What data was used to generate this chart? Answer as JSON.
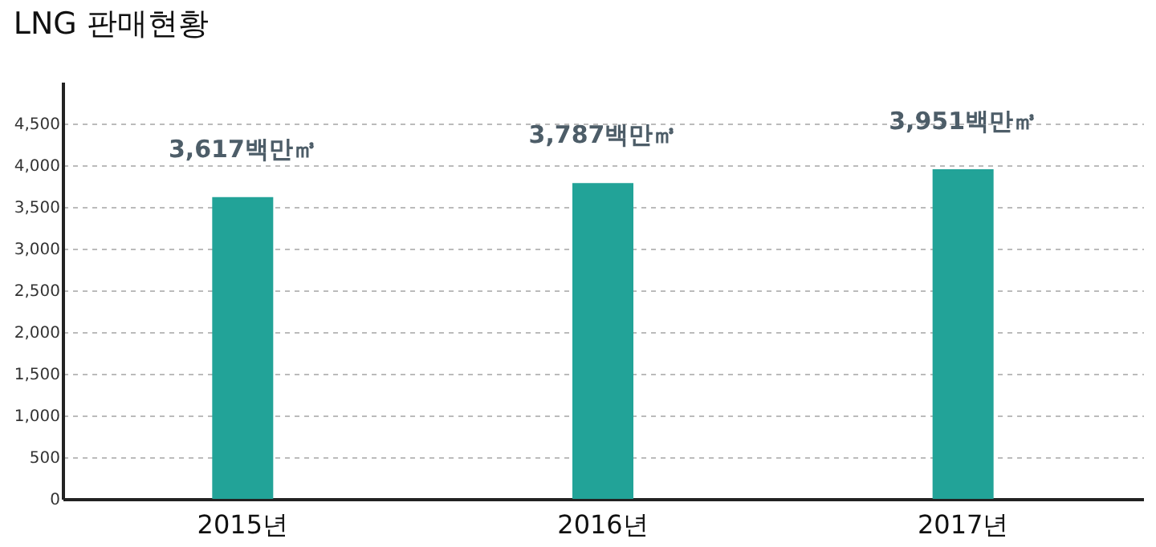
{
  "chart_data": {
    "type": "bar",
    "title": "LNG 판매현황",
    "categories": [
      "2015년",
      "2016년",
      "2017년"
    ],
    "values": [
      3617,
      3787,
      3951
    ],
    "value_labels": [
      "3,617백만㎥",
      "3,787백만㎥",
      "3,951백만㎥"
    ],
    "color": "#22a398",
    "ylim": [
      0,
      5000
    ],
    "yticks": [
      {
        "value": 0,
        "label": "0"
      },
      {
        "value": 500,
        "label": "500"
      },
      {
        "value": 1000,
        "label": "1,000"
      },
      {
        "value": 1500,
        "label": "1,500"
      },
      {
        "value": 2000,
        "label": "2,000"
      },
      {
        "value": 2500,
        "label": "2,500"
      },
      {
        "value": 3000,
        "label": "3,000"
      },
      {
        "value": 3500,
        "label": "3,500"
      },
      {
        "value": 4000,
        "label": "4,000"
      },
      {
        "value": 4500,
        "label": "4,500"
      }
    ],
    "grid": "y"
  }
}
